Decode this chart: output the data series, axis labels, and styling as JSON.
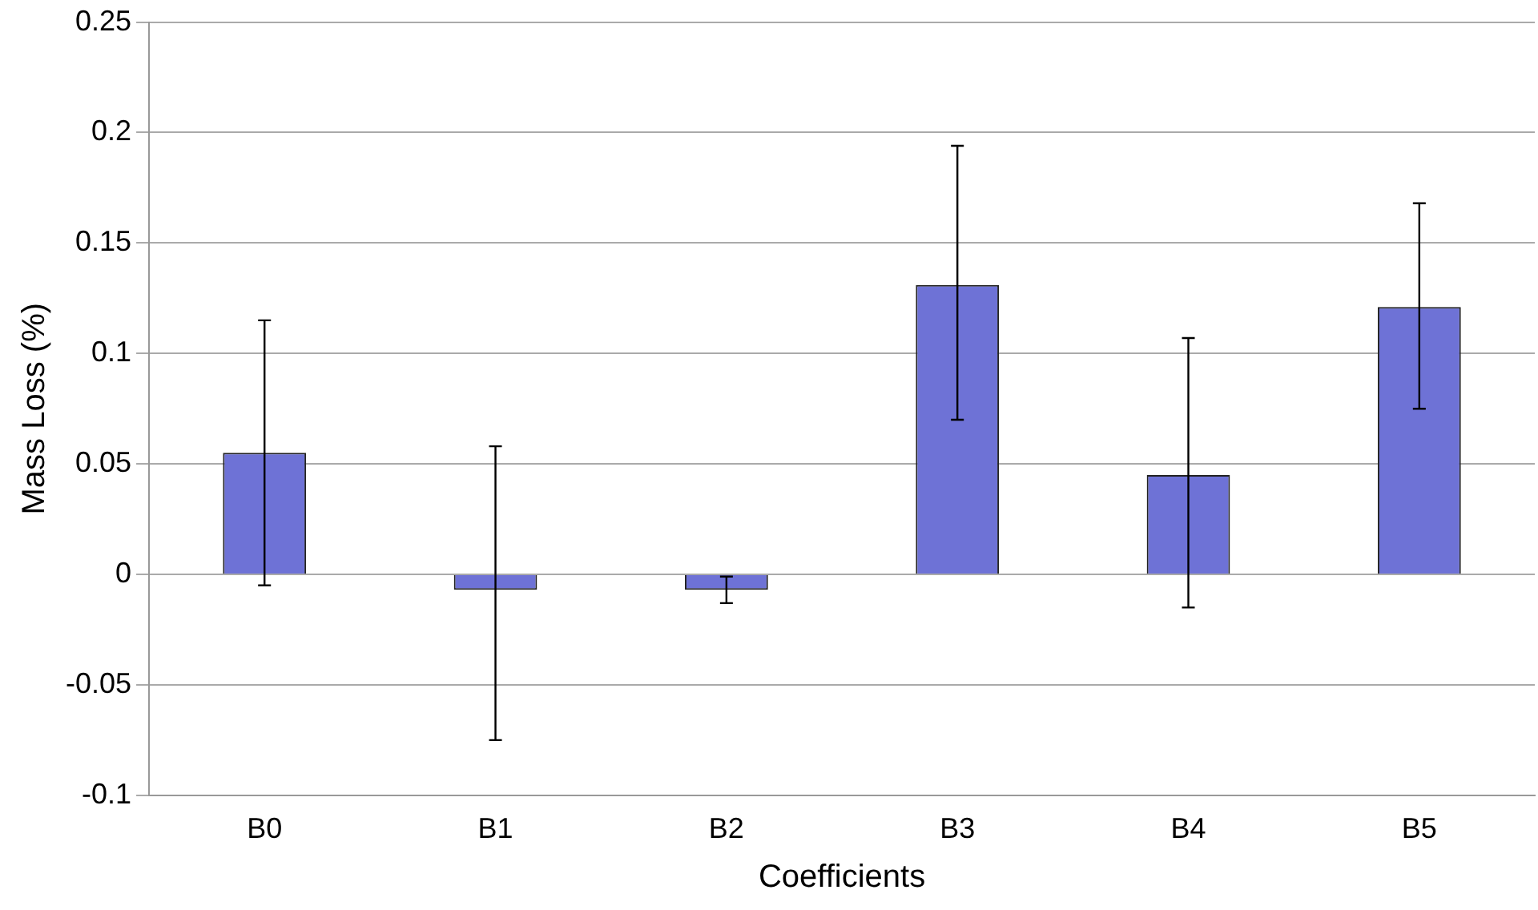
{
  "chart_data": {
    "type": "bar",
    "xlabel": "Coefficients",
    "ylabel": "Mass Loss (%)",
    "categories": [
      "B0",
      "B1",
      "B2",
      "B3",
      "B4",
      "B5"
    ],
    "values": [
      0.055,
      -0.007,
      -0.007,
      0.131,
      0.045,
      0.121
    ],
    "errors": [
      [
        -0.005,
        0.115
      ],
      [
        -0.075,
        0.058
      ],
      [
        -0.013,
        -0.001
      ],
      [
        0.07,
        0.194
      ],
      [
        -0.015,
        0.107
      ],
      [
        0.075,
        0.168
      ]
    ],
    "color": "#6e72d6",
    "ylim": [
      -0.1,
      0.25
    ],
    "yticks": [
      -0.1,
      -0.05,
      0,
      0.05,
      0.1,
      0.15,
      0.2,
      0.25
    ],
    "grid": "y"
  }
}
